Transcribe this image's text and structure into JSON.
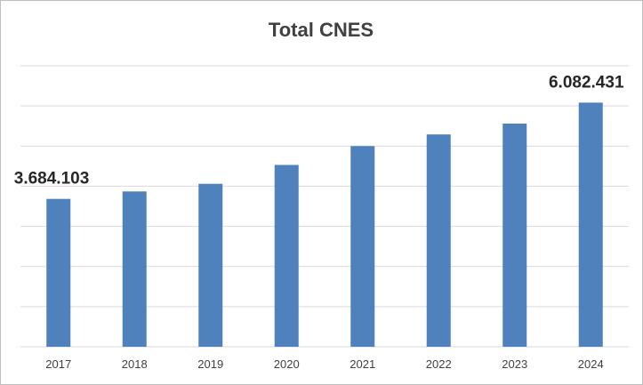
{
  "chart_data": {
    "type": "bar",
    "title": "Total CNES",
    "categories": [
      "2017",
      "2018",
      "2019",
      "2020",
      "2021",
      "2022",
      "2023",
      "2024"
    ],
    "values": [
      3684103,
      3870000,
      4060000,
      4530000,
      5000000,
      5290000,
      5560000,
      6082431
    ],
    "data_labels": [
      {
        "index": 0,
        "text": "3.684.103"
      },
      {
        "index": 7,
        "text": "6.082.431"
      }
    ],
    "ylim": [
      0,
      7000000
    ],
    "y_gridline_step": 1000000,
    "y_tick_labels_shown": false,
    "grid": true,
    "legend": "none",
    "bar_color": "#4f81bd",
    "gridline_color": "#d9d9d9"
  }
}
